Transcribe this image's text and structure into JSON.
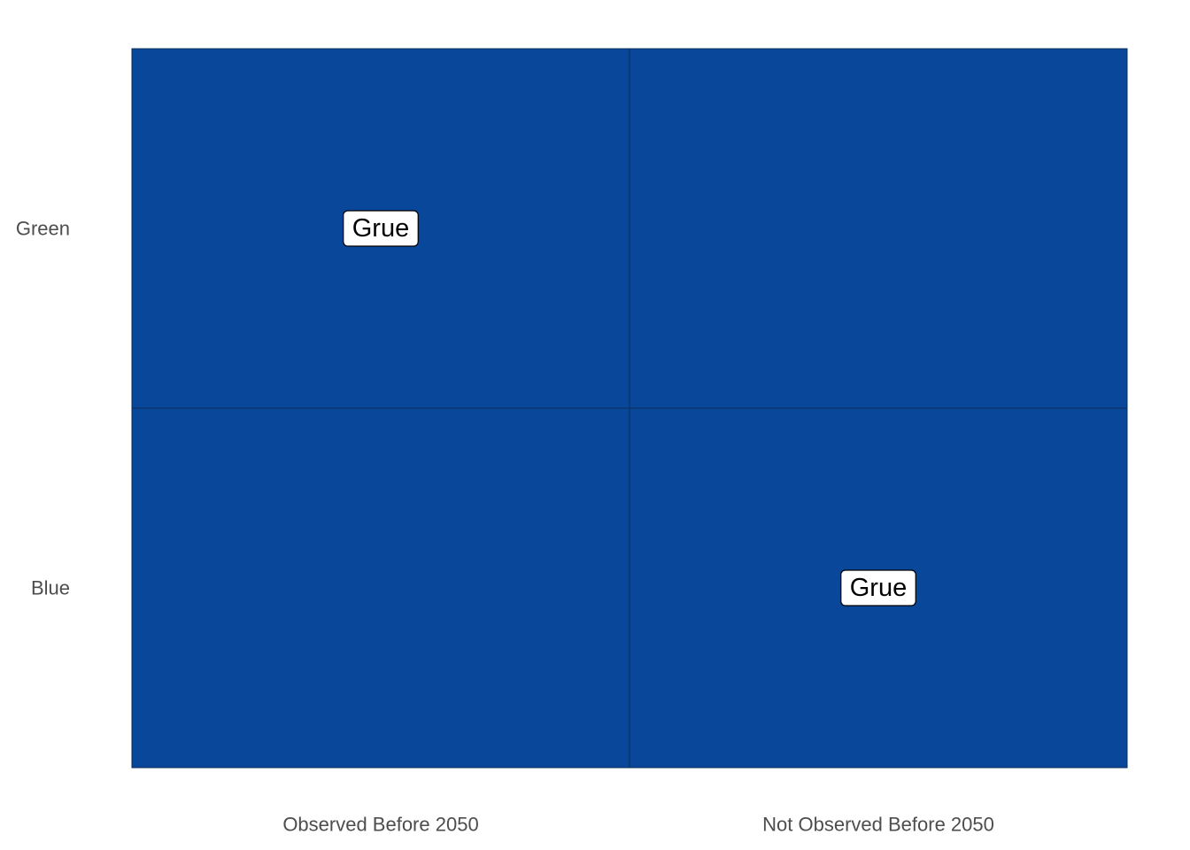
{
  "chart_data": {
    "type": "heatmap",
    "title": "",
    "xlabel": "",
    "ylabel": "",
    "x_categories": [
      "Observed Before 2050",
      "Not Observed Before 2050"
    ],
    "y_categories": [
      "Blue",
      "Green"
    ],
    "cells": [
      {
        "x": "Observed Before 2050",
        "y": "Green",
        "label": "Grue"
      },
      {
        "x": "Not Observed Before 2050",
        "y": "Green",
        "label": ""
      },
      {
        "x": "Observed Before 2050",
        "y": "Blue",
        "label": ""
      },
      {
        "x": "Not Observed Before 2050",
        "y": "Blue",
        "label": "Grue"
      }
    ],
    "legend": "none",
    "grid": false,
    "colors": {
      "cell_fill": "#08479A",
      "cell_border": "#0B2D57",
      "label_fill": "#FFFFFF",
      "label_border": "#000000",
      "tick_text": "#4D4D4D"
    }
  }
}
